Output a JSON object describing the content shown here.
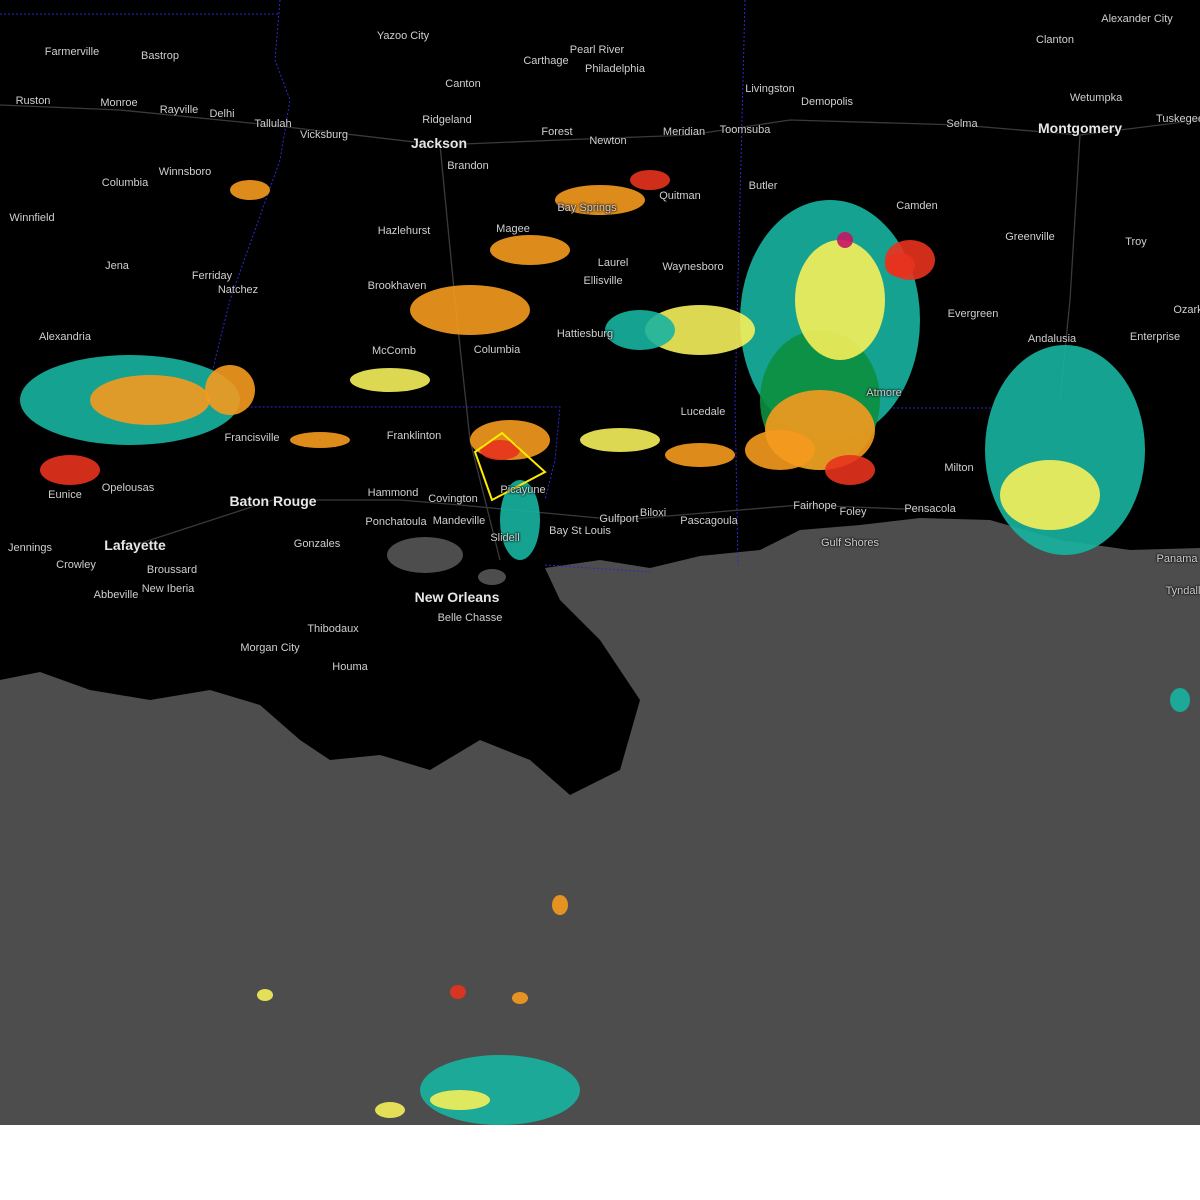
{
  "map": {
    "type": "weather radar",
    "colors": {
      "land": "#000000",
      "water": "#4d4d4d",
      "warning_polygon": "#ffea00",
      "state_border": "#2a2ad0"
    },
    "radar_colors": [
      "#17b4a0",
      "#0c8f3f",
      "#f5f05a",
      "#f59a1e",
      "#e8321e",
      "#c81464"
    ],
    "cities": [
      {
        "name": "Alexander City"
      },
      {
        "name": "Farmerville"
      },
      {
        "name": "Bastrop"
      },
      {
        "name": "Yazoo City"
      },
      {
        "name": "Pearl River"
      },
      {
        "name": "Carthage"
      },
      {
        "name": "Philadelphia"
      },
      {
        "name": "Clanton"
      },
      {
        "name": "Ruston"
      },
      {
        "name": "Monroe"
      },
      {
        "name": "Rayville"
      },
      {
        "name": "Delhi"
      },
      {
        "name": "Tallulah"
      },
      {
        "name": "Vicksburg"
      },
      {
        "name": "Canton"
      },
      {
        "name": "Ridgeland"
      },
      {
        "name": "Jackson",
        "major": true
      },
      {
        "name": "Brandon"
      },
      {
        "name": "Forest"
      },
      {
        "name": "Newton"
      },
      {
        "name": "Meridian"
      },
      {
        "name": "Toomsuba"
      },
      {
        "name": "Livingston"
      },
      {
        "name": "Demopolis"
      },
      {
        "name": "Wetumpka"
      },
      {
        "name": "Selma"
      },
      {
        "name": "Montgomery",
        "major": true
      },
      {
        "name": "Tuskegee"
      },
      {
        "name": "Winnsboro"
      },
      {
        "name": "Columbia"
      },
      {
        "name": "Winnfield"
      },
      {
        "name": "Hazlehurst"
      },
      {
        "name": "Magee"
      },
      {
        "name": "Bay Springs"
      },
      {
        "name": "Quitman"
      },
      {
        "name": "Butler"
      },
      {
        "name": "Camden"
      },
      {
        "name": "Greenville"
      },
      {
        "name": "Troy"
      },
      {
        "name": "Jena"
      },
      {
        "name": "Ferriday"
      },
      {
        "name": "Natchez"
      },
      {
        "name": "Brookhaven"
      },
      {
        "name": "Laurel"
      },
      {
        "name": "Ellisville"
      },
      {
        "name": "Waynesboro"
      },
      {
        "name": "Evergreen"
      },
      {
        "name": "Alexandria"
      },
      {
        "name": "McComb"
      },
      {
        "name": "Columbia"
      },
      {
        "name": "Hattiesburg"
      },
      {
        "name": "Andalusia"
      },
      {
        "name": "Enterprise"
      },
      {
        "name": "Ozark"
      },
      {
        "name": "Franklinton"
      },
      {
        "name": "Lucedale"
      },
      {
        "name": "Atmore"
      },
      {
        "name": "Milton"
      },
      {
        "name": "Francisville"
      },
      {
        "name": "Baton Rouge",
        "major": true
      },
      {
        "name": "Hammond"
      },
      {
        "name": "Covington"
      },
      {
        "name": "Picayune"
      },
      {
        "name": "Ponchatoula"
      },
      {
        "name": "Mandeville"
      },
      {
        "name": "Slidell"
      },
      {
        "name": "Gulfport"
      },
      {
        "name": "Biloxi"
      },
      {
        "name": "Pascagoula"
      },
      {
        "name": "Bay St Louis"
      },
      {
        "name": "Fairhope"
      },
      {
        "name": "Foley"
      },
      {
        "name": "Pensacola"
      },
      {
        "name": "Gulf Shores"
      },
      {
        "name": "Panama"
      },
      {
        "name": "Tyndall"
      },
      {
        "name": "Jennings"
      },
      {
        "name": "Lafayette",
        "major": true
      },
      {
        "name": "Crowley"
      },
      {
        "name": "Broussard"
      },
      {
        "name": "Abbeville"
      },
      {
        "name": "New Iberia"
      },
      {
        "name": "Gonzales"
      },
      {
        "name": "New Orleans",
        "major": true
      },
      {
        "name": "Belle Chasse"
      },
      {
        "name": "Thibodaux"
      },
      {
        "name": "Morgan City"
      },
      {
        "name": "Houma"
      },
      {
        "name": "Opelousas"
      },
      {
        "name": "Eunice"
      }
    ]
  }
}
